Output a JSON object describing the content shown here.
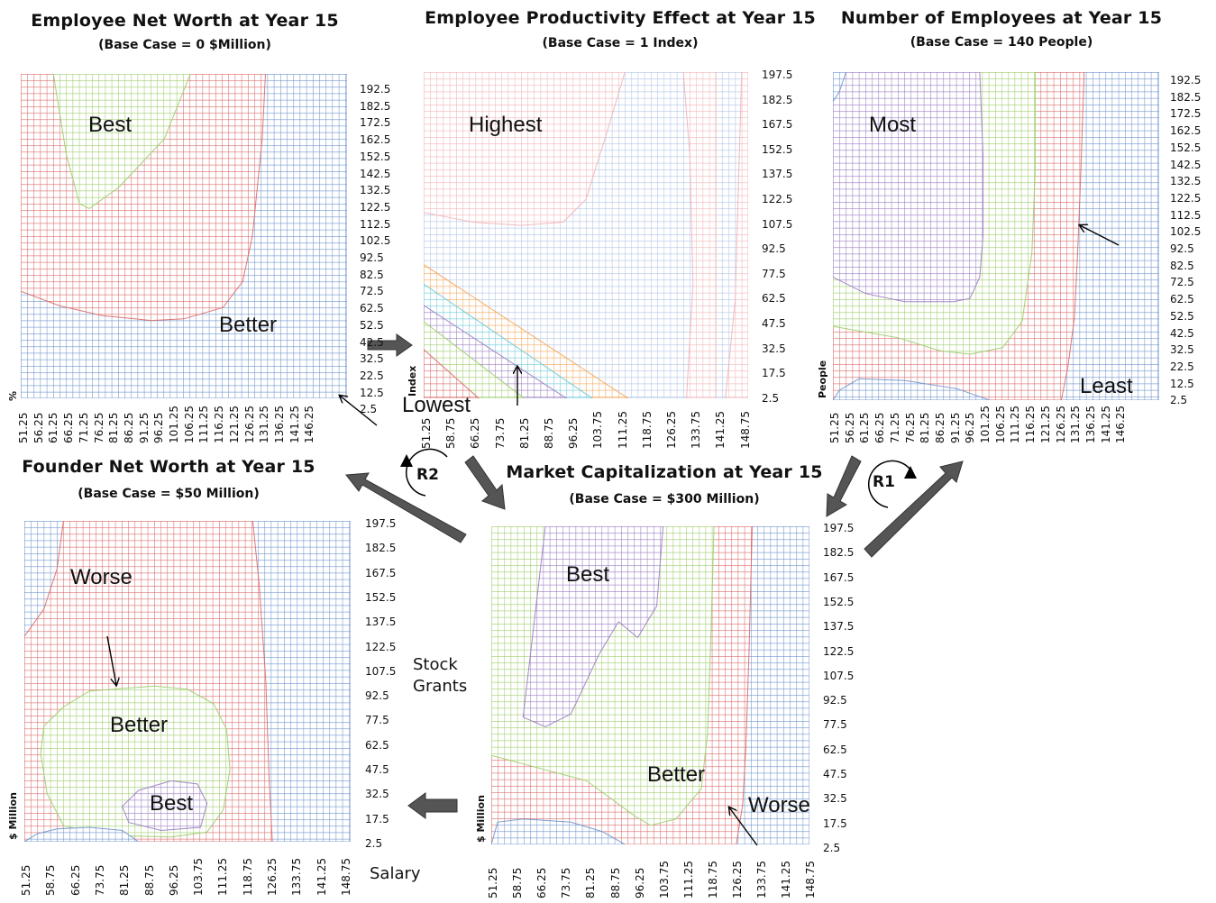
{
  "colors": {
    "blue": "#6f94cc",
    "red": "#d96a6a",
    "green": "#9ccc6a",
    "purple": "#9a7cc2",
    "orange": "#f2a65a",
    "cyan": "#6cc8d8",
    "pale_red": "#f0b4b8",
    "pale_blue": "#b0c4e6",
    "arrow_fill": "#555555"
  },
  "axes": {
    "salary_label": "Salary",
    "stock_grants_label": "Stock\nGrants"
  },
  "loops": {
    "r1": "R1",
    "r2": "R2"
  },
  "chart_data": [
    {
      "id": "emp_net_worth",
      "type": "heatmap",
      "title": "Employee Net Worth at Year 15",
      "subtitle": "(Base Case = 0 $Million)",
      "ylabel": "%",
      "x_ticks": [
        "51.25",
        "56.25",
        "61.25",
        "66.25",
        "71.25",
        "76.25",
        "81.25",
        "86.25",
        "91.25",
        "96.25",
        "101.25",
        "106.25",
        "111.25",
        "116.25",
        "121.25",
        "126.25",
        "131.25",
        "136.25",
        "141.25",
        "146.25"
      ],
      "y_ticks": [
        "192.5",
        "182.5",
        "172.5",
        "162.5",
        "152.5",
        "142.5",
        "132.5",
        "122.5",
        "112.5",
        "102.5",
        "92.5",
        "82.5",
        "72.5",
        "62.5",
        "52.5",
        "42.5",
        "32.5",
        "22.5",
        "12.5",
        "2.5"
      ],
      "xlim": [
        50,
        150
      ],
      "ylim": [
        0,
        200
      ],
      "regions": [
        {
          "color": "blue",
          "polygon": [
            [
              50,
              0
            ],
            [
              150,
              0
            ],
            [
              150,
              200
            ],
            [
              50,
              200
            ]
          ]
        },
        {
          "color": "red",
          "polygon": [
            [
              50,
              200
            ],
            [
              125,
              200
            ],
            [
              124,
              160
            ],
            [
              121,
              100
            ],
            [
              118,
              72
            ],
            [
              112,
              56
            ],
            [
              100,
              49
            ],
            [
              90,
              48
            ],
            [
              75,
              51
            ],
            [
              62,
              57
            ],
            [
              50,
              66
            ]
          ]
        },
        {
          "color": "green",
          "polygon": [
            [
              60,
              200
            ],
            [
              102,
              200
            ],
            [
              94,
              160
            ],
            [
              80,
              130
            ],
            [
              71,
              117
            ],
            [
              68,
              120
            ],
            [
              64,
              150
            ]
          ]
        }
      ],
      "labels": [
        {
          "text": "Best"
        },
        {
          "text": "Better"
        }
      ]
    },
    {
      "id": "productivity",
      "type": "heatmap",
      "title": "Employee Productivity Effect at Year 15",
      "subtitle": "(Base Case = 1 Index)",
      "ylabel": "Index",
      "x_ticks": [
        "51.25",
        "58.75",
        "66.25",
        "73.75",
        "81.25",
        "88.75",
        "96.25",
        "103.75",
        "111.25",
        "118.75",
        "126.25",
        "133.75",
        "141.25",
        "148.75"
      ],
      "y_ticks": [
        "197.5",
        "182.5",
        "167.5",
        "152.5",
        "137.5",
        "122.5",
        "107.5",
        "92.5",
        "77.5",
        "62.5",
        "47.5",
        "32.5",
        "17.5",
        "2.5"
      ],
      "xlim": [
        50,
        150
      ],
      "ylim": [
        0,
        200
      ],
      "regions": [
        {
          "color": "pale_blue",
          "polygon": [
            [
              50,
              0
            ],
            [
              150,
              0
            ],
            [
              150,
              200
            ],
            [
              50,
              200
            ]
          ]
        },
        {
          "color": "pale_red",
          "polygon": [
            [
              50,
              200
            ],
            [
              112,
              200
            ],
            [
              106,
              160
            ],
            [
              100,
              122
            ],
            [
              93,
              108
            ],
            [
              80,
              106
            ],
            [
              65,
              108
            ],
            [
              50,
              114
            ]
          ]
        },
        {
          "color": "pale_red",
          "polygon": [
            [
              131,
              0
            ],
            [
              140,
              0
            ],
            [
              140,
              200
            ],
            [
              130,
              200
            ],
            [
              132,
              150
            ],
            [
              133,
              70
            ]
          ]
        },
        {
          "color": "pale_red",
          "polygon": [
            [
              143,
              0
            ],
            [
              150,
              0
            ],
            [
              150,
              200
            ],
            [
              148,
              200
            ],
            [
              146,
              60
            ]
          ]
        },
        {
          "color": "orange",
          "polygon": [
            [
              50,
              82
            ],
            [
              113,
              0
            ],
            [
              50,
              0
            ]
          ]
        },
        {
          "color": "cyan",
          "polygon": [
            [
              50,
              70
            ],
            [
              102,
              0
            ],
            [
              50,
              0
            ]
          ]
        },
        {
          "color": "purple",
          "polygon": [
            [
              50,
              57
            ],
            [
              94,
              0
            ],
            [
              50,
              0
            ]
          ]
        },
        {
          "color": "green",
          "polygon": [
            [
              50,
              47
            ],
            [
              81,
              0
            ],
            [
              50,
              0
            ]
          ]
        },
        {
          "color": "red",
          "polygon": [
            [
              50,
              30
            ],
            [
              67,
              0
            ],
            [
              50,
              0
            ]
          ]
        }
      ],
      "labels": [
        {
          "text": "Highest"
        },
        {
          "text": "Lowest"
        }
      ]
    },
    {
      "id": "num_employees",
      "type": "heatmap",
      "title": "Number of Employees at Year 15",
      "subtitle": "(Base Case = 140 People)",
      "ylabel": "People",
      "x_ticks": [
        "51.25",
        "56.25",
        "61.25",
        "66.25",
        "71.25",
        "76.25",
        "81.25",
        "86.25",
        "91.25",
        "96.25",
        "101.25",
        "106.25",
        "111.25",
        "116.25",
        "121.25",
        "126.25",
        "131.25",
        "136.25",
        "141.25",
        "146.25"
      ],
      "y_ticks": [
        "192.5",
        "182.5",
        "172.5",
        "162.5",
        "152.5",
        "142.5",
        "132.5",
        "122.5",
        "112.5",
        "102.5",
        "92.5",
        "82.5",
        "72.5",
        "62.5",
        "52.5",
        "42.5",
        "32.5",
        "22.5",
        "12.5",
        "2.5"
      ],
      "xlim": [
        50,
        150
      ],
      "ylim": [
        0,
        200
      ],
      "regions": [
        {
          "color": "blue",
          "polygon": [
            [
              50,
              0
            ],
            [
              150,
              0
            ],
            [
              150,
              200
            ],
            [
              50,
              200
            ]
          ]
        },
        {
          "color": "red",
          "polygon": [
            [
              50,
              0
            ],
            [
              120,
              0
            ],
            [
              122,
              20
            ],
            [
              124,
              50
            ],
            [
              125,
              90
            ],
            [
              126,
              140
            ],
            [
              127,
              200
            ],
            [
              50,
              200
            ]
          ]
        },
        {
          "color": "green",
          "polygon": [
            [
              50,
              45
            ],
            [
              70,
              38
            ],
            [
              83,
              30
            ],
            [
              92,
              28
            ],
            [
              102,
              32
            ],
            [
              108,
              48
            ],
            [
              111,
              90
            ],
            [
              112,
              140
            ],
            [
              112,
              200
            ],
            [
              50,
              200
            ]
          ]
        },
        {
          "color": "purple",
          "polygon": [
            [
              50,
              75
            ],
            [
              60,
              65
            ],
            [
              72,
              60
            ],
            [
              87,
              60
            ],
            [
              92,
              62
            ],
            [
              95,
              75
            ],
            [
              96,
              100
            ],
            [
              96,
              150
            ],
            [
              95,
              200
            ],
            [
              50,
              200
            ]
          ]
        },
        {
          "color": "blue",
          "polygon": [
            [
              50,
              0
            ],
            [
              98,
              0
            ],
            [
              88,
              7
            ],
            [
              72,
              12
            ],
            [
              58,
              13
            ],
            [
              52,
              6
            ]
          ]
        },
        {
          "color": "blue",
          "polygon": [
            [
              50,
              200
            ],
            [
              54,
              200
            ],
            [
              52,
              188
            ],
            [
              50,
              182
            ]
          ]
        }
      ],
      "labels": [
        {
          "text": "Most"
        },
        {
          "text": "Least"
        }
      ]
    },
    {
      "id": "founder_net_worth",
      "type": "heatmap",
      "title": "Founder Net Worth at Year 15",
      "subtitle": "(Base Case = $50 Million)",
      "ylabel": "$ Million",
      "x_ticks": [
        "51.25",
        "58.75",
        "66.25",
        "73.75",
        "81.25",
        "88.75",
        "96.25",
        "103.75",
        "111.25",
        "118.75",
        "126.25",
        "133.75",
        "141.25",
        "148.75"
      ],
      "y_ticks": [
        "197.5",
        "182.5",
        "167.5",
        "152.5",
        "137.5",
        "122.5",
        "107.5",
        "92.5",
        "77.5",
        "62.5",
        "47.5",
        "32.5",
        "17.5",
        "2.5"
      ],
      "xlim": [
        50,
        150
      ],
      "ylim": [
        0,
        200
      ],
      "regions": [
        {
          "color": "blue",
          "polygon": [
            [
              50,
              0
            ],
            [
              150,
              0
            ],
            [
              150,
              200
            ],
            [
              50,
              200
            ]
          ]
        },
        {
          "color": "red",
          "polygon": [
            [
              50,
              128
            ],
            [
              56,
              145
            ],
            [
              60,
              170
            ],
            [
              62,
              200
            ],
            [
              120,
              200
            ],
            [
              122,
              160
            ],
            [
              124,
              100
            ],
            [
              125,
              40
            ],
            [
              126,
              0
            ],
            [
              50,
              0
            ]
          ]
        },
        {
          "color": "green",
          "polygon": [
            [
              56,
              72
            ],
            [
              62,
              84
            ],
            [
              70,
              94
            ],
            [
              90,
              97
            ],
            [
              100,
              95
            ],
            [
              108,
              86
            ],
            [
              112,
              70
            ],
            [
              113,
              45
            ],
            [
              111,
              20
            ],
            [
              106,
              6
            ],
            [
              95,
              3
            ],
            [
              75,
              4
            ],
            [
              62,
              10
            ],
            [
              57,
              30
            ],
            [
              55,
              55
            ]
          ]
        },
        {
          "color": "purple",
          "polygon": [
            [
              80,
              22
            ],
            [
              85,
              32
            ],
            [
              95,
              38
            ],
            [
              103,
              36
            ],
            [
              106,
              24
            ],
            [
              104,
              9
            ],
            [
              92,
              7
            ],
            [
              82,
              12
            ]
          ]
        },
        {
          "color": "blue",
          "polygon": [
            [
              50,
              0
            ],
            [
              85,
              0
            ],
            [
              80,
              7
            ],
            [
              70,
              9
            ],
            [
              60,
              8
            ],
            [
              54,
              5
            ]
          ]
        }
      ],
      "labels": [
        {
          "text": "Worse"
        },
        {
          "text": "Better"
        },
        {
          "text": "Best"
        }
      ]
    },
    {
      "id": "market_cap",
      "type": "heatmap",
      "title": "Market Capitalization  at Year 15",
      "subtitle": "(Base Case = $300 Million)",
      "ylabel": "$ Million",
      "x_ticks": [
        "51.25",
        "58.75",
        "66.25",
        "73.75",
        "81.25",
        "88.75",
        "96.25",
        "103.75",
        "111.25",
        "118.75",
        "126.25",
        "133.75",
        "141.25",
        "148.75"
      ],
      "y_ticks": [
        "197.5",
        "182.5",
        "167.5",
        "152.5",
        "137.5",
        "122.5",
        "107.5",
        "92.5",
        "77.5",
        "62.5",
        "47.5",
        "32.5",
        "17.5",
        "2.5"
      ],
      "xlim": [
        50,
        150
      ],
      "ylim": [
        0,
        200
      ],
      "regions": [
        {
          "color": "blue",
          "polygon": [
            [
              50,
              0
            ],
            [
              150,
              0
            ],
            [
              150,
              200
            ],
            [
              50,
              200
            ]
          ]
        },
        {
          "color": "red",
          "polygon": [
            [
              50,
              0
            ],
            [
              127,
              0
            ],
            [
              129,
              25
            ],
            [
              130,
              60
            ],
            [
              131,
              120
            ],
            [
              132,
              200
            ],
            [
              50,
              200
            ]
          ]
        },
        {
          "color": "green",
          "polygon": [
            [
              50,
              56
            ],
            [
              65,
              48
            ],
            [
              80,
              40
            ],
            [
              95,
              18
            ],
            [
              100,
              12
            ],
            [
              108,
              16
            ],
            [
              116,
              35
            ],
            [
              118,
              70
            ],
            [
              119,
              130
            ],
            [
              120,
              200
            ],
            [
              50,
              200
            ]
          ]
        },
        {
          "color": "purple",
          "polygon": [
            [
              60,
              80
            ],
            [
              67,
              74
            ],
            [
              75,
              82
            ],
            [
              84,
              120
            ],
            [
              90,
              140
            ],
            [
              96,
              130
            ],
            [
              102,
              150
            ],
            [
              104,
              200
            ],
            [
              67,
              200
            ]
          ]
        },
        {
          "color": "blue",
          "polygon": [
            [
              50,
              0
            ],
            [
              92,
              0
            ],
            [
              85,
              8
            ],
            [
              75,
              14
            ],
            [
              60,
              16
            ],
            [
              52,
              14
            ]
          ]
        }
      ],
      "labels": [
        {
          "text": "Best"
        },
        {
          "text": "Better"
        },
        {
          "text": "Worse"
        }
      ]
    }
  ]
}
